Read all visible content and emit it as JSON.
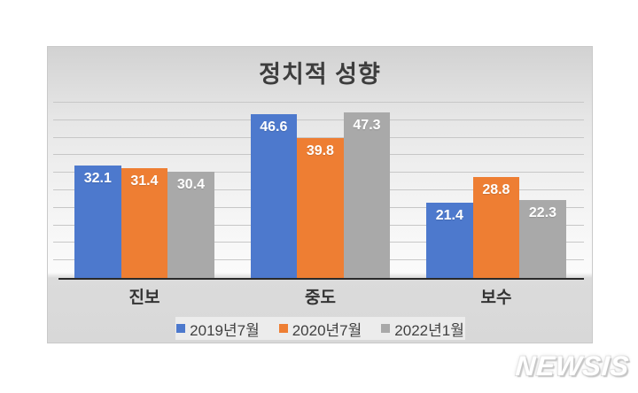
{
  "watermark": {
    "text": "NEWSIS"
  },
  "colors": {
    "series_blue": "#4d79cd",
    "series_orange": "#ee7e33",
    "series_gray": "#a9a9a9",
    "title_text": "#3d3d3d",
    "axis_line": "#2a2a2a",
    "gridline": "#c7c7c7",
    "legend_background": "#ececec",
    "chart_background_top": "#d2d2d2",
    "chart_background_bottom": "#d8d8d8"
  },
  "chart_data": {
    "type": "bar",
    "title": "정치적 성향",
    "categories": [
      "진보",
      "중도",
      "보수"
    ],
    "series": [
      {
        "name": "2019년7월",
        "color": "#4d79cd",
        "values": [
          32.1,
          46.6,
          21.4
        ]
      },
      {
        "name": "2020년7월",
        "color": "#ee7e33",
        "values": [
          31.4,
          39.8,
          28.8
        ]
      },
      {
        "name": "2022년1월",
        "color": "#a9a9a9",
        "values": [
          30.4,
          47.3,
          22.3
        ]
      }
    ],
    "xlabel": "",
    "ylabel": "",
    "ylim": [
      0,
      50
    ],
    "grid_step": 5,
    "grid": true,
    "y_tick_labels_visible": false,
    "legend_position": "bottom",
    "data_labels": "inside-end, white bold"
  }
}
